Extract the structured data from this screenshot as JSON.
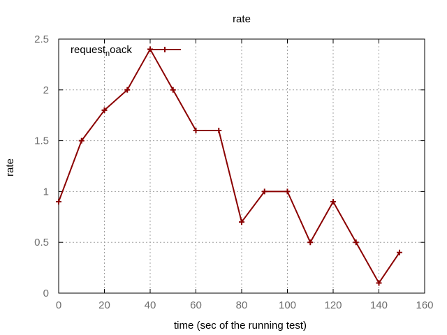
{
  "chart_data": {
    "type": "line",
    "title": "rate",
    "xlabel": "time (sec of the running test)",
    "ylabel": "rate",
    "xlim": [
      0,
      160
    ],
    "ylim": [
      0,
      2.5
    ],
    "xticks": [
      0,
      20,
      40,
      60,
      80,
      100,
      120,
      140,
      160
    ],
    "yticks": [
      0,
      0.5,
      1,
      1.5,
      2,
      2.5
    ],
    "xtick_labels": [
      "0",
      "20",
      "40",
      "60",
      "80",
      "100",
      "120",
      "140",
      "160"
    ],
    "ytick_labels": [
      "0",
      "0.5",
      "1",
      "1.5",
      "2",
      "2.5"
    ],
    "grid": true,
    "legend_position": "top-left",
    "series": [
      {
        "name": "request_noack",
        "legend_main": "request",
        "legend_sub": "n",
        "legend_rest": "oack",
        "color": "#8b0000",
        "marker": "plus",
        "x": [
          0,
          10,
          20,
          30,
          40,
          50,
          60,
          70,
          80,
          90,
          100,
          110,
          120,
          130,
          140,
          149
        ],
        "y": [
          0.9,
          1.5,
          1.8,
          2.0,
          2.4,
          2.0,
          1.6,
          1.6,
          0.7,
          1.0,
          1.0,
          0.5,
          0.9,
          0.5,
          0.1,
          0.4
        ]
      }
    ]
  }
}
